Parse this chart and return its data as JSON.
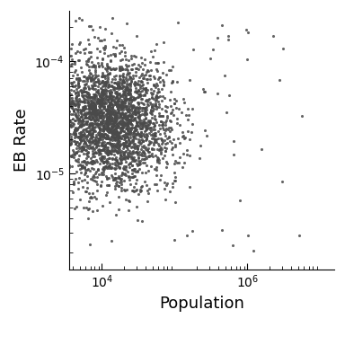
{
  "xlabel": "Population",
  "ylabel": "EB Rate",
  "dot_color": "#4a4a4a",
  "dot_size": 5,
  "dot_alpha": 0.85,
  "xlim_log": [
    3.55,
    7.2
  ],
  "ylim_log": [
    -5.85,
    -3.55
  ],
  "xticks": [
    4,
    6
  ],
  "yticks": [
    -5,
    -4
  ],
  "n_points": 3000,
  "seed": 42,
  "background_color": "#ffffff",
  "xlabel_fontsize": 13,
  "ylabel_fontsize": 13,
  "tick_fontsize": 10
}
